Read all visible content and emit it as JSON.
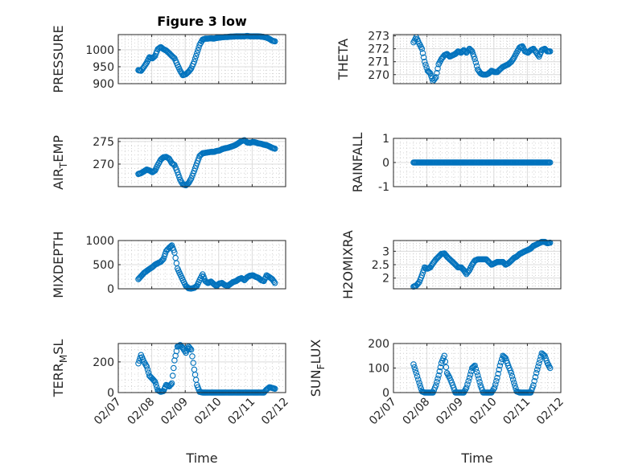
{
  "colors": {
    "marker": "#0072BD",
    "axis": "#262626",
    "grid": "#DCDCDC",
    "minor_grid": "#C8C8C8"
  },
  "chart_data": {
    "type": "scatter",
    "title": "Figure 3 low",
    "xlabel": "Time",
    "xlim": [
      7,
      12
    ],
    "xticks": [
      7,
      8,
      9,
      10,
      11,
      12
    ],
    "xticklabels": [
      "02/07",
      "02/08",
      "02/09",
      "02/10",
      "02/11",
      "02/12"
    ],
    "x_units": "day of February",
    "grid": true,
    "marker": "open-circle",
    "x": [
      7.6,
      7.68,
      7.77,
      7.85,
      7.93,
      8.02,
      8.1,
      8.18,
      8.27,
      8.35,
      8.43,
      8.52,
      8.6,
      8.68,
      8.77,
      8.85,
      8.93,
      9.02,
      9.1,
      9.18,
      9.27,
      9.35,
      9.43,
      9.52,
      9.6,
      9.68,
      9.77,
      9.85,
      9.93,
      10.02,
      10.1,
      10.18,
      10.27,
      10.35,
      10.43,
      10.52,
      10.6,
      10.68,
      10.77,
      10.85,
      10.93,
      11.02,
      11.1,
      11.18,
      11.27,
      11.35,
      11.43,
      11.52,
      11.6,
      11.68
    ],
    "subplots": [
      {
        "ylabel": "PRESSURE",
        "ylim": [
          900,
          1045
        ],
        "yticks": [
          900,
          950,
          1000
        ],
        "values": [
          940,
          938,
          950,
          962,
          978,
          975,
          982,
          1002,
          1008,
          1002,
          998,
          990,
          982,
          975,
          955,
          938,
          925,
          928,
          935,
          945,
          965,
          990,
          1015,
          1030,
          1033,
          1033,
          1034,
          1033,
          1035,
          1036,
          1037,
          1038,
          1038,
          1039,
          1039,
          1040,
          1040,
          1040,
          1040,
          1041,
          1040,
          1040,
          1040,
          1040,
          1039,
          1038,
          1036,
          1032,
          1027,
          1025
        ]
      },
      {
        "ylabel": "THETA",
        "ylim": [
          269.3,
          273.1
        ],
        "yticks": [
          270,
          271,
          272,
          273
        ],
        "values": [
          272.5,
          272.9,
          272.4,
          272.0,
          271.0,
          270.3,
          270.1,
          269.5,
          269.8,
          270.8,
          271.2,
          271.5,
          271.6,
          271.4,
          271.5,
          271.6,
          271.8,
          271.7,
          271.9,
          271.7,
          272.0,
          271.8,
          271.2,
          270.4,
          270.1,
          270.0,
          270.0,
          270.1,
          270.3,
          270.2,
          270.2,
          270.4,
          270.6,
          270.7,
          270.8,
          271.0,
          271.3,
          271.7,
          272.1,
          272.2,
          271.8,
          271.7,
          271.9,
          272.0,
          271.7,
          271.4,
          271.9,
          272.0,
          271.8,
          271.8
        ]
      },
      {
        "ylabel": "AIR_TEMP",
        "ylim": [
          265,
          275.7
        ],
        "yticks": [
          270,
          275
        ],
        "values": [
          267.8,
          268.0,
          268.4,
          268.8,
          268.6,
          268.2,
          268.6,
          269.8,
          271.0,
          271.5,
          271.6,
          271.2,
          270.2,
          269.8,
          268.2,
          266.5,
          265.5,
          265.3,
          265.8,
          266.8,
          268.5,
          270.2,
          271.8,
          272.4,
          272.5,
          272.6,
          272.7,
          272.7,
          272.9,
          273.0,
          273.3,
          273.5,
          273.6,
          273.8,
          274.0,
          274.3,
          274.7,
          275.1,
          275.3,
          274.8,
          274.7,
          274.9,
          274.8,
          274.6,
          274.5,
          274.3,
          274.2,
          273.9,
          273.6,
          273.4
        ]
      },
      {
        "ylabel": "RAINFALL",
        "ylim": [
          -1,
          1
        ],
        "yticks": [
          -1,
          0,
          1
        ],
        "values": [
          0,
          0,
          0,
          0,
          0,
          0,
          0,
          0,
          0,
          0,
          0,
          0,
          0,
          0,
          0,
          0,
          0,
          0,
          0,
          0,
          0,
          0,
          0,
          0,
          0,
          0,
          0,
          0,
          0,
          0,
          0,
          0,
          0,
          0,
          0,
          0,
          0,
          0,
          0,
          0,
          0,
          0,
          0,
          0,
          0,
          0,
          0,
          0,
          0,
          0
        ]
      },
      {
        "ylabel": "MIXDEPTH",
        "ylim": [
          0,
          1000
        ],
        "yticks": [
          0,
          500,
          1000
        ],
        "values": [
          200,
          260,
          330,
          370,
          410,
          450,
          500,
          530,
          560,
          620,
          780,
          850,
          900,
          750,
          420,
          300,
          180,
          60,
          10,
          5,
          20,
          60,
          180,
          300,
          160,
          120,
          150,
          100,
          60,
          110,
          120,
          80,
          60,
          100,
          140,
          160,
          200,
          220,
          180,
          240,
          270,
          280,
          250,
          230,
          180,
          160,
          280,
          240,
          200,
          120
        ]
      },
      {
        "ylabel": "H2OMIXRA",
        "ylim": [
          1.6,
          3.4
        ],
        "yticks": [
          2,
          2.5,
          3
        ],
        "values": [
          1.68,
          1.72,
          1.85,
          2.1,
          2.4,
          2.35,
          2.4,
          2.55,
          2.7,
          2.8,
          2.9,
          2.92,
          2.8,
          2.7,
          2.6,
          2.5,
          2.4,
          2.4,
          2.3,
          2.15,
          2.3,
          2.5,
          2.65,
          2.7,
          2.7,
          2.7,
          2.7,
          2.6,
          2.5,
          2.55,
          2.6,
          2.6,
          2.6,
          2.5,
          2.55,
          2.65,
          2.75,
          2.8,
          2.9,
          2.95,
          3.0,
          3.05,
          3.1,
          3.2,
          3.25,
          3.3,
          3.35,
          3.35,
          3.3,
          3.32
        ]
      },
      {
        "ylabel": "TERR_MSL",
        "ylim": [
          0,
          320
        ],
        "yticks": [
          0,
          200
        ],
        "values": [
          190,
          245,
          200,
          170,
          110,
          90,
          70,
          15,
          5,
          10,
          50,
          40,
          60,
          210,
          300,
          310,
          290,
          260,
          300,
          280,
          150,
          50,
          5,
          0,
          0,
          0,
          0,
          0,
          0,
          0,
          0,
          0,
          0,
          0,
          0,
          0,
          0,
          0,
          0,
          0,
          0,
          0,
          0,
          0,
          0,
          0,
          20,
          35,
          30,
          25
        ]
      },
      {
        "ylabel": "SUN_FLUX",
        "ylim": [
          0,
          200
        ],
        "yticks": [
          0,
          100,
          200
        ],
        "values": [
          115,
          80,
          40,
          5,
          0,
          0,
          0,
          0,
          30,
          70,
          120,
          150,
          80,
          60,
          30,
          0,
          0,
          0,
          0,
          20,
          60,
          100,
          110,
          70,
          30,
          0,
          0,
          0,
          0,
          20,
          60,
          110,
          150,
          140,
          110,
          80,
          40,
          5,
          0,
          0,
          0,
          0,
          0,
          30,
          80,
          120,
          160,
          150,
          120,
          100
        ]
      }
    ]
  }
}
